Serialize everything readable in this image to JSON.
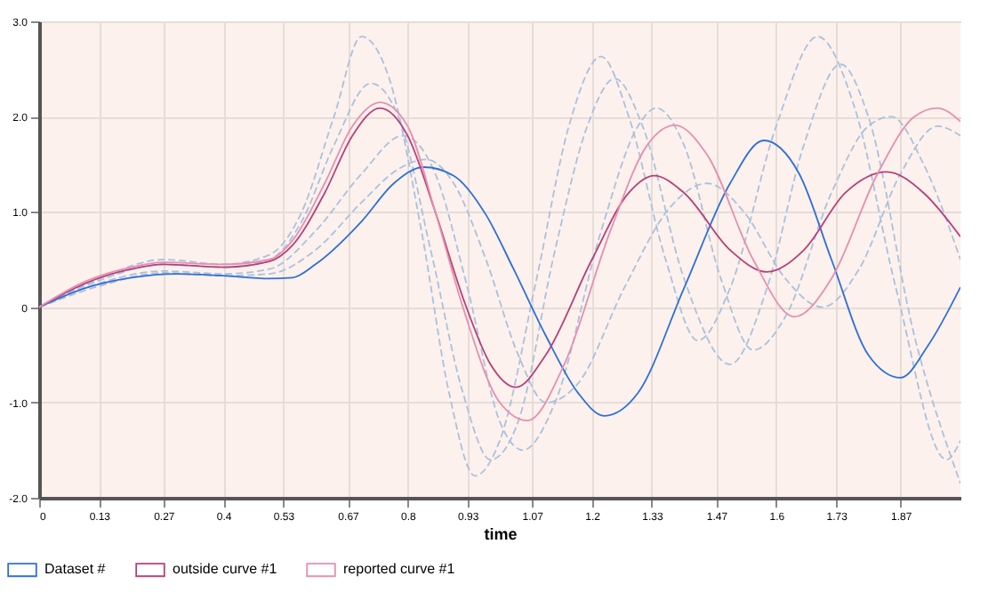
{
  "chart_data": {
    "type": "line",
    "xlabel": "time",
    "xlim": [
      0,
      2
    ],
    "xticks": [
      0,
      0.13,
      0.27,
      0.4,
      0.53,
      0.67,
      0.8,
      0.93,
      1.07,
      1.2,
      1.33,
      1.47,
      1.6,
      1.73,
      1.87
    ],
    "ylim": [
      -2,
      3
    ],
    "yticks": [
      {
        "value": -2,
        "label": "-2.0"
      },
      {
        "value": -1,
        "label": "-1.0"
      },
      0,
      {
        "value": 1,
        "label": "1.0"
      },
      {
        "value": 2,
        "label": "2.0"
      },
      {
        "value": 3,
        "label": "3.0"
      }
    ],
    "grid": true,
    "legend": "bottom left",
    "line_style": "solid",
    "series": [
      {
        "color": "#a9c1df",
        "line_style": "dashed",
        "x": [
          0,
          0.13,
          0.27,
          0.4,
          0.5,
          0.57,
          0.64,
          0.7,
          0.76,
          0.83,
          0.89,
          0.946,
          1.0,
          1.08,
          1.15,
          1.22,
          1.28,
          1.36,
          1.43,
          1.5,
          1.6,
          1.69,
          1.77,
          1.86,
          1.97,
          2.0
        ],
        "values": [
          0,
          0.3,
          0.5,
          0.45,
          0.55,
          1.0,
          2.0,
          2.84,
          2.4,
          0.8,
          -0.9,
          -1.77,
          -1.4,
          0.3,
          1.9,
          2.63,
          2.0,
          0.5,
          -0.35,
          0.2,
          1.9,
          2.84,
          2.1,
          0.2,
          -1.6,
          -1.4
        ]
      },
      {
        "color": "#a9c1df",
        "line_style": "dashed",
        "x": [
          0,
          0.13,
          0.27,
          0.4,
          0.5,
          0.6,
          0.7,
          0.79,
          0.86,
          0.93,
          1.0,
          1.05,
          1.12,
          1.22,
          1.3,
          1.34,
          1.4,
          1.48,
          1.55,
          1.62,
          1.72,
          1.8,
          1.85,
          1.92,
          2.0
        ],
        "values": [
          0,
          0.25,
          0.38,
          0.35,
          0.4,
          0.8,
          1.4,
          1.8,
          1.4,
          0.2,
          -1.2,
          -1.5,
          -1.0,
          0.8,
          1.9,
          2.09,
          1.7,
          0.3,
          -0.45,
          -0.1,
          1.2,
          1.9,
          2.0,
          1.5,
          0.5
        ]
      },
      {
        "color": "#a9c1df",
        "line_style": "dashed",
        "x": [
          0,
          0.13,
          0.27,
          0.4,
          0.5,
          0.57,
          0.64,
          0.72,
          0.78,
          0.85,
          0.92,
          0.98,
          1.04,
          1.12,
          1.19,
          1.25,
          1.31,
          1.4,
          1.5,
          1.58,
          1.66,
          1.74,
          1.8,
          1.9,
          2.0
        ],
        "values": [
          0,
          0.28,
          0.45,
          0.42,
          0.5,
          0.9,
          1.7,
          2.35,
          2.0,
          0.6,
          -0.9,
          -1.6,
          -1.2,
          0.6,
          1.9,
          2.4,
          1.9,
          0.3,
          -0.6,
          0.2,
          1.7,
          2.55,
          2.0,
          -0.3,
          -1.85
        ]
      },
      {
        "color": "#a9c1df",
        "line_style": "dashed",
        "x": [
          0,
          0.13,
          0.27,
          0.4,
          0.5,
          0.6,
          0.7,
          0.78,
          0.84,
          0.9,
          0.97,
          1.04,
          1.1,
          1.17,
          1.27,
          1.37,
          1.45,
          1.53,
          1.62,
          1.7,
          1.78,
          1.87,
          1.95,
          2.0
        ],
        "values": [
          0,
          0.22,
          0.36,
          0.33,
          0.35,
          0.6,
          1.1,
          1.45,
          1.55,
          1.3,
          0.5,
          -0.5,
          -1.0,
          -0.8,
          0.2,
          1.05,
          1.3,
          1.0,
          0.3,
          0.0,
          0.4,
          1.4,
          1.9,
          1.8
        ]
      },
      {
        "name": "Dataset #",
        "color": "#2f6fd6",
        "x": [
          0,
          0.1,
          0.2,
          0.3,
          0.4,
          0.5,
          0.55,
          0.6,
          0.7,
          0.77,
          0.835,
          0.9,
          0.97,
          1.03,
          1.1,
          1.17,
          1.227,
          1.3,
          1.4,
          1.5,
          1.573,
          1.65,
          1.72,
          1.8,
          1.87,
          1.93,
          2.0
        ],
        "values": [
          0,
          0.2,
          0.31,
          0.35,
          0.33,
          0.3,
          0.31,
          0.45,
          0.9,
          1.3,
          1.47,
          1.38,
          0.97,
          0.4,
          -0.3,
          -0.9,
          -1.14,
          -0.9,
          0.2,
          1.3,
          1.75,
          1.4,
          0.5,
          -0.5,
          -0.74,
          -0.4,
          0.21
        ]
      },
      {
        "name": "outside curve #1",
        "color": "#b5407a",
        "x": [
          0,
          0.1,
          0.2,
          0.27,
          0.4,
          0.5,
          0.55,
          0.62,
          0.68,
          0.74,
          0.8,
          0.86,
          0.92,
          0.98,
          1.035,
          1.1,
          1.2,
          1.28,
          1.335,
          1.4,
          1.5,
          1.58,
          1.66,
          1.75,
          1.84,
          1.92,
          2.0
        ],
        "values": [
          0,
          0.25,
          0.4,
          0.45,
          0.42,
          0.48,
          0.65,
          1.2,
          1.8,
          2.09,
          1.8,
          1.0,
          0.1,
          -0.6,
          -0.84,
          -0.5,
          0.5,
          1.2,
          1.38,
          1.2,
          0.6,
          0.37,
          0.6,
          1.2,
          1.42,
          1.2,
          0.74
        ]
      },
      {
        "name": "reported curve #1",
        "color": "#e58fb0",
        "x": [
          0,
          0.1,
          0.2,
          0.27,
          0.4,
          0.5,
          0.55,
          0.62,
          0.68,
          0.74,
          0.8,
          0.86,
          0.92,
          1.0,
          1.06,
          1.14,
          1.24,
          1.32,
          1.38,
          1.45,
          1.55,
          1.64,
          1.72,
          1.82,
          1.9,
          1.95,
          2.0
        ],
        "values": [
          0,
          0.27,
          0.42,
          0.47,
          0.45,
          0.5,
          0.7,
          1.3,
          1.9,
          2.15,
          1.9,
          1.0,
          0.0,
          -1.0,
          -1.19,
          -0.6,
          0.8,
          1.7,
          1.91,
          1.6,
          0.5,
          -0.1,
          0.3,
          1.4,
          2.0,
          2.09,
          1.95
        ]
      }
    ]
  }
}
